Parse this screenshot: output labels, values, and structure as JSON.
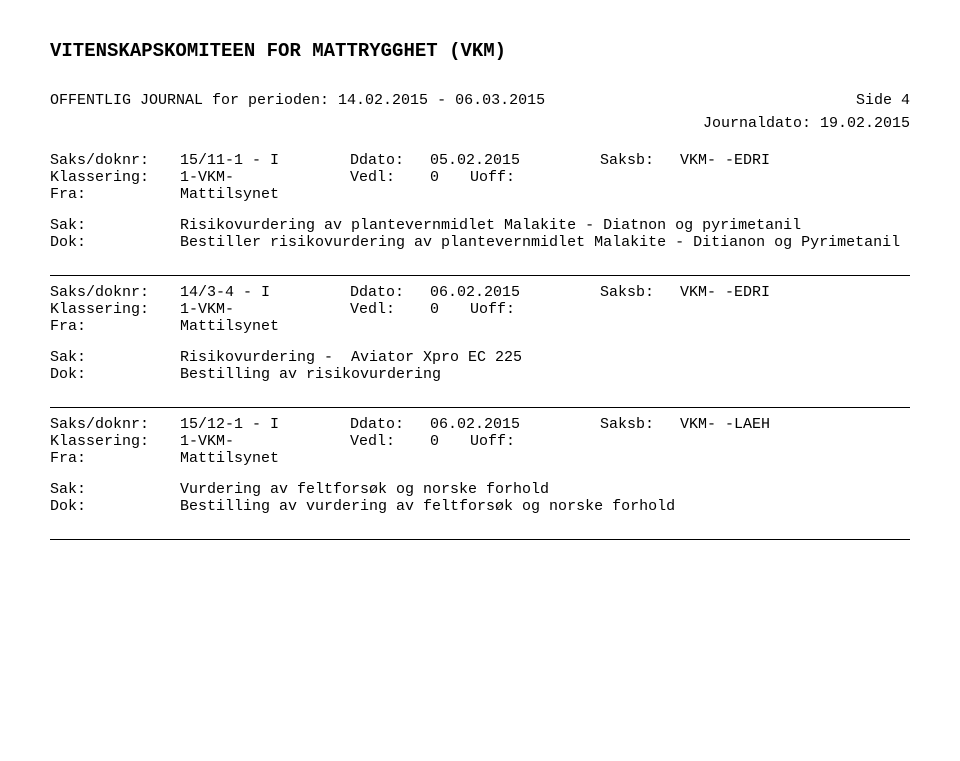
{
  "header": {
    "org_title": "VITENSKAPSKOMITEEN FOR MATTRYGGHET (VKM)",
    "subtitle": "OFFENTLIG JOURNAL for perioden: 14.02.2015 - 06.03.2015",
    "side_label": "Side 4",
    "journal_date_label": "Journaldato: 19.02.2015"
  },
  "labels": {
    "saks_doknr": "Saks/doknr:",
    "ddato": "Ddato:",
    "saksb": "Saksb:",
    "klassering": "Klassering:",
    "vedl": "Vedl:",
    "uoff": "Uoff:",
    "fra": "Fra:",
    "sak": "Sak:",
    "dok": "Dok:"
  },
  "entries": [
    {
      "saks_doknr": "15/11-1 - I",
      "ddato": "05.02.2015",
      "saksb": "VKM- -EDRI",
      "klassering": "1-VKM-",
      "vedl": "0",
      "uoff": "",
      "fra": "Mattilsynet",
      "sak": "Risikovurdering av plantevernmidlet Malakite - Diatnon og pyrimetanil",
      "dok": "Bestiller risikovurdering av plantevernmidlet Malakite - Ditianon og Pyrimetanil"
    },
    {
      "saks_doknr": "14/3-4 - I",
      "ddato": "06.02.2015",
      "saksb": "VKM- -EDRI",
      "klassering": "1-VKM-",
      "vedl": "0",
      "uoff": "",
      "fra": "Mattilsynet",
      "sak": "Risikovurdering -  Aviator Xpro EC 225",
      "dok": "Bestilling av risikovurdering"
    },
    {
      "saks_doknr": "15/12-1 - I",
      "ddato": "06.02.2015",
      "saksb": "VKM- -LAEH",
      "klassering": "1-VKM-",
      "vedl": "0",
      "uoff": "",
      "fra": "Mattilsynet",
      "sak": "Vurdering av feltforsøk og norske forhold",
      "dok": "Bestilling av vurdering av feltforsøk og norske forhold"
    }
  ]
}
